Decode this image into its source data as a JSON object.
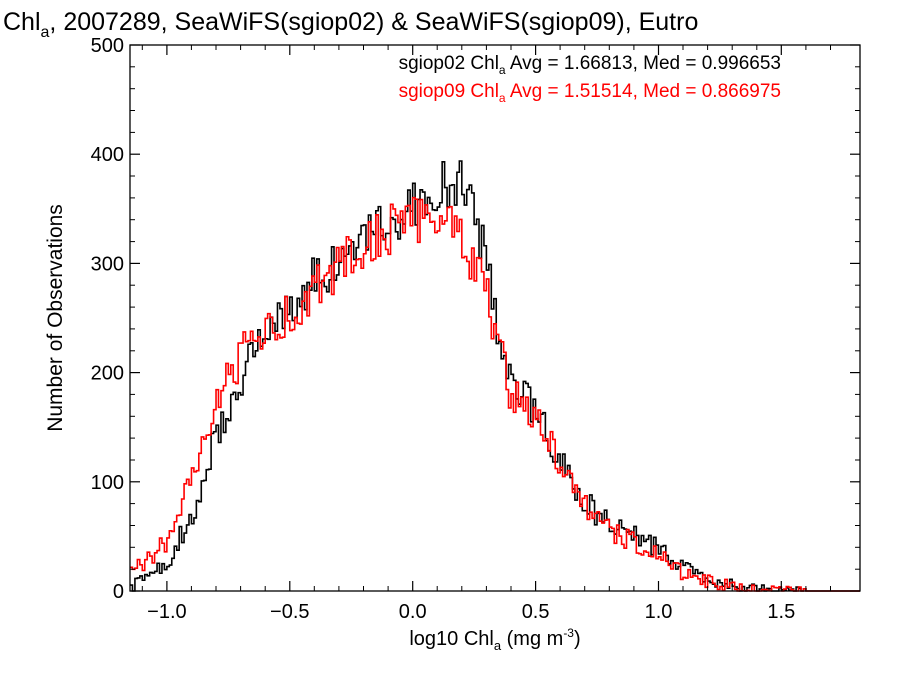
{
  "chart_data": {
    "type": "line",
    "style": "step histogram",
    "title": {
      "prefix": "Chl",
      "sub": "a",
      "rest": ", 2007289, SeaWiFS(sgiop02) & SeaWiFS(sgiop09), Eutro"
    },
    "xlabel": {
      "prefix": "log10 Chl",
      "sub": "a",
      "unit": " (mg m",
      "sup": "-3",
      "close": ")"
    },
    "ylabel": "Number of Observations",
    "xlim": [
      -1.15,
      1.82
    ],
    "ylim": [
      0,
      500
    ],
    "xticks": [
      -1.0,
      -0.5,
      0.0,
      0.5,
      1.0,
      1.5
    ],
    "xtick_labels": [
      "−1.0",
      "−0.5",
      "0.0",
      "0.5",
      "1.0",
      "1.5"
    ],
    "yticks": [
      0,
      100,
      200,
      300,
      400,
      500
    ],
    "ytick_labels": [
      "0",
      "100",
      "200",
      "300",
      "400",
      "500"
    ],
    "grid": false,
    "legend_placement": "top-right",
    "bin_width": 0.01,
    "series": [
      {
        "name": "sgiop02",
        "color": "#000000",
        "legend": {
          "prefix": "sgiop02 Chl",
          "sub": "a",
          "rest": " Avg = 1.66813, Med = 0.996653"
        },
        "points": [
          [
            -1.15,
            2
          ],
          [
            -1.0,
            25
          ],
          [
            -0.9,
            68
          ],
          [
            -0.8,
            140
          ],
          [
            -0.7,
            195
          ],
          [
            -0.6,
            240
          ],
          [
            -0.5,
            260
          ],
          [
            -0.4,
            285
          ],
          [
            -0.3,
            300
          ],
          [
            -0.2,
            318
          ],
          [
            -0.1,
            340
          ],
          [
            0.0,
            350
          ],
          [
            0.1,
            370
          ],
          [
            0.2,
            372
          ],
          [
            0.25,
            345
          ],
          [
            0.3,
            300
          ],
          [
            0.35,
            240
          ],
          [
            0.4,
            190
          ],
          [
            0.5,
            165
          ],
          [
            0.6,
            118
          ],
          [
            0.7,
            80
          ],
          [
            0.8,
            62
          ],
          [
            0.9,
            50
          ],
          [
            1.0,
            38
          ],
          [
            1.1,
            20
          ],
          [
            1.2,
            12
          ],
          [
            1.3,
            6
          ],
          [
            1.4,
            2
          ],
          [
            1.5,
            1
          ],
          [
            1.6,
            0
          ],
          [
            1.82,
            0
          ]
        ]
      },
      {
        "name": "sgiop09",
        "color": "#ff0000",
        "legend": {
          "prefix": "sgiop09 Chl",
          "sub": "a",
          "rest": " Avg = 1.51514, Med = 0.866975"
        },
        "points": [
          [
            -1.15,
            15
          ],
          [
            -1.0,
            45
          ],
          [
            -0.9,
            100
          ],
          [
            -0.8,
            170
          ],
          [
            -0.7,
            215
          ],
          [
            -0.6,
            242
          ],
          [
            -0.5,
            255
          ],
          [
            -0.4,
            275
          ],
          [
            -0.3,
            298
          ],
          [
            -0.2,
            315
          ],
          [
            -0.1,
            330
          ],
          [
            0.0,
            340
          ],
          [
            0.1,
            345
          ],
          [
            0.2,
            322
          ],
          [
            0.25,
            300
          ],
          [
            0.3,
            275
          ],
          [
            0.35,
            225
          ],
          [
            0.4,
            180
          ],
          [
            0.5,
            160
          ],
          [
            0.6,
            115
          ],
          [
            0.7,
            78
          ],
          [
            0.8,
            58
          ],
          [
            0.9,
            44
          ],
          [
            1.0,
            32
          ],
          [
            1.1,
            16
          ],
          [
            1.2,
            9
          ],
          [
            1.3,
            4
          ],
          [
            1.4,
            2
          ],
          [
            1.5,
            1
          ],
          [
            1.6,
            0
          ],
          [
            1.82,
            0
          ]
        ]
      }
    ]
  }
}
